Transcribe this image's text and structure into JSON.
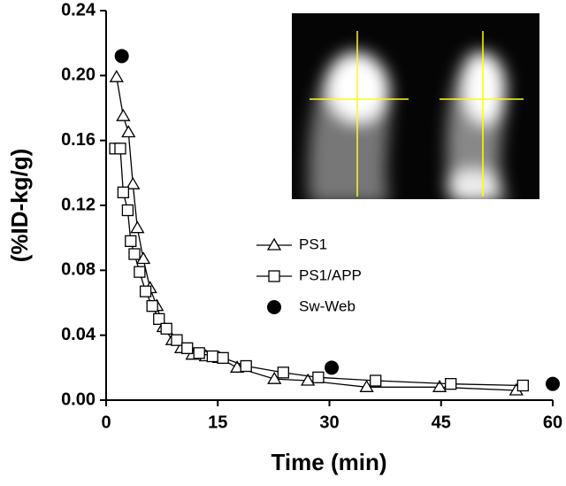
{
  "chart_data": {
    "type": "line",
    "xlabel": "Time (min)",
    "ylabel": "(%ID-kg/g)",
    "xlim": [
      0,
      60
    ],
    "xticks": [
      0,
      15,
      30,
      45,
      60
    ],
    "ylim": [
      0,
      0.24
    ],
    "yticks": [
      {
        "value": 0,
        "label": "0.00"
      },
      0.04,
      0.08,
      0.12,
      0.16,
      {
        "value": 0.2,
        "label": "0.20"
      },
      0.24
    ],
    "series": [
      {
        "name": "PS1",
        "color": "#000000",
        "marker": "triangle",
        "line": true,
        "x": [
          1.4,
          2.3,
          3.0,
          3.6,
          4.2,
          5.0,
          5.9,
          6.8,
          7.7,
          8.9,
          10.1,
          11.6,
          13.4,
          15.2,
          17.6,
          22.6,
          27.1,
          35,
          44.8,
          55.1
        ],
        "values": [
          0.199,
          0.175,
          0.165,
          0.133,
          0.106,
          0.087,
          0.069,
          0.058,
          0.045,
          0.037,
          0.032,
          0.028,
          0.027,
          0.026,
          0.02,
          0.013,
          0.012,
          0.008,
          0.008,
          0.006
        ]
      },
      {
        "name": "PS1/APP",
        "color": "#000000",
        "marker": "square",
        "line": true,
        "x": [
          1.2,
          1.9,
          2.3,
          2.9,
          3.3,
          3.8,
          4.5,
          5.3,
          6.2,
          7.1,
          8.1,
          9.5,
          10.9,
          12.5,
          14.3,
          15.7,
          18.8,
          23.8,
          28.5,
          36.2,
          46.3,
          56
        ],
        "values": [
          0.155,
          0.155,
          0.128,
          0.117,
          0.098,
          0.09,
          0.079,
          0.067,
          0.058,
          0.05,
          0.044,
          0.037,
          0.032,
          0.029,
          0.027,
          0.026,
          0.021,
          0.017,
          0.014,
          0.012,
          0.01,
          0.009
        ]
      },
      {
        "name": "Sw-Web",
        "color": "#000000",
        "marker": "circle",
        "line": false,
        "x": [
          2.1,
          30.3,
          60
        ],
        "values": [
          0.212,
          0.02,
          0.01
        ]
      }
    ]
  }
}
